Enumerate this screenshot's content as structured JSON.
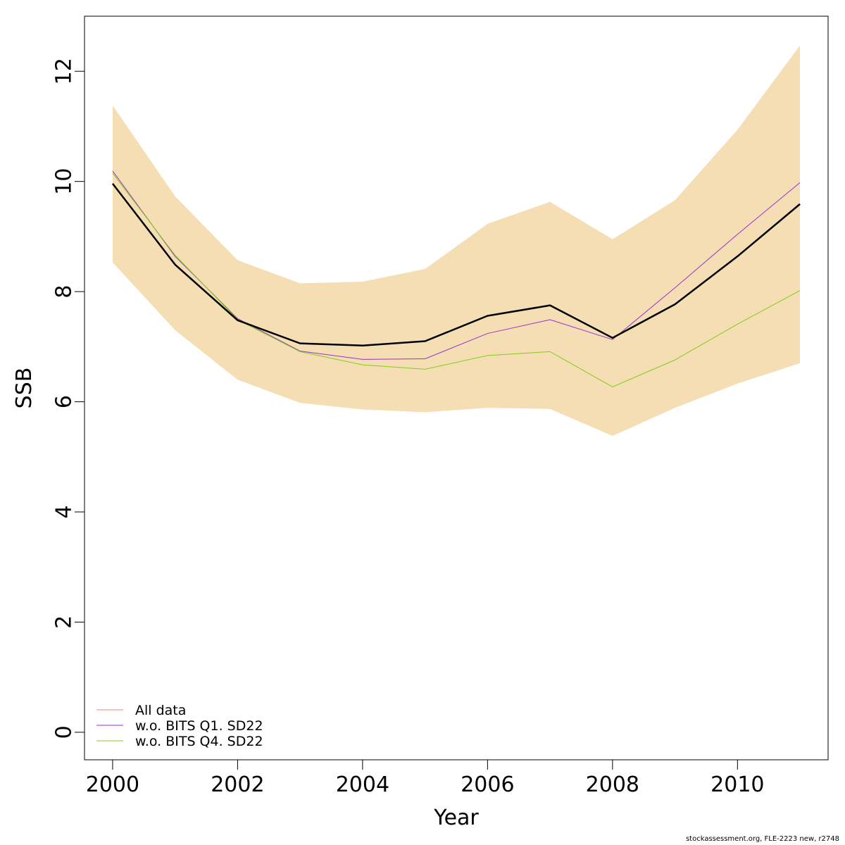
{
  "chart_data": {
    "type": "line",
    "xlabel": "Year",
    "ylabel": "SSB",
    "xlim": [
      1999.55,
      2011.45
    ],
    "ylim": [
      -0.5,
      13.0
    ],
    "x_ticks": [
      2000,
      2002,
      2004,
      2006,
      2008,
      2010
    ],
    "y_ticks": [
      0,
      2,
      4,
      6,
      8,
      10,
      12
    ],
    "x": [
      2000,
      2001,
      2002,
      2003,
      2004,
      2005,
      2006,
      2007,
      2008,
      2009,
      2010,
      2011
    ],
    "confidence_band": {
      "color": "#F5DEB3",
      "lower": [
        8.53,
        7.3,
        6.4,
        5.98,
        5.86,
        5.81,
        5.89,
        5.87,
        5.38,
        5.89,
        6.33,
        6.7
      ],
      "upper": [
        11.38,
        9.73,
        8.57,
        8.15,
        8.18,
        8.41,
        9.23,
        9.63,
        8.95,
        9.66,
        10.94,
        12.47
      ]
    },
    "series": [
      {
        "name": "All data",
        "color": "#000000",
        "legend_color": "#F08080",
        "line_width": 2.5,
        "values": [
          9.96,
          8.49,
          7.48,
          7.06,
          7.02,
          7.1,
          7.56,
          7.75,
          7.16,
          7.77,
          8.64,
          9.59
        ]
      },
      {
        "name": "w.o. BITS Q1. SD22",
        "color": "#9932CC",
        "line_width": 1,
        "values": [
          10.19,
          8.64,
          7.51,
          6.92,
          6.77,
          6.78,
          7.24,
          7.49,
          7.13,
          8.07,
          9.04,
          9.98
        ]
      },
      {
        "name": "w.o. BITS Q4. SD22",
        "color": "#7FCD1A",
        "line_width": 1,
        "values": [
          10.15,
          8.66,
          7.49,
          6.91,
          6.67,
          6.59,
          6.84,
          6.91,
          6.27,
          6.76,
          7.41,
          8.02
        ]
      }
    ],
    "legend": {
      "placement": "bottom-left",
      "entries": [
        "All data",
        "w.o. BITS Q1. SD22",
        "w.o. BITS Q4. SD22"
      ]
    },
    "grid": false
  },
  "footer": {
    "note": "stockassessment.org, FLE-2223 new, r2748"
  }
}
